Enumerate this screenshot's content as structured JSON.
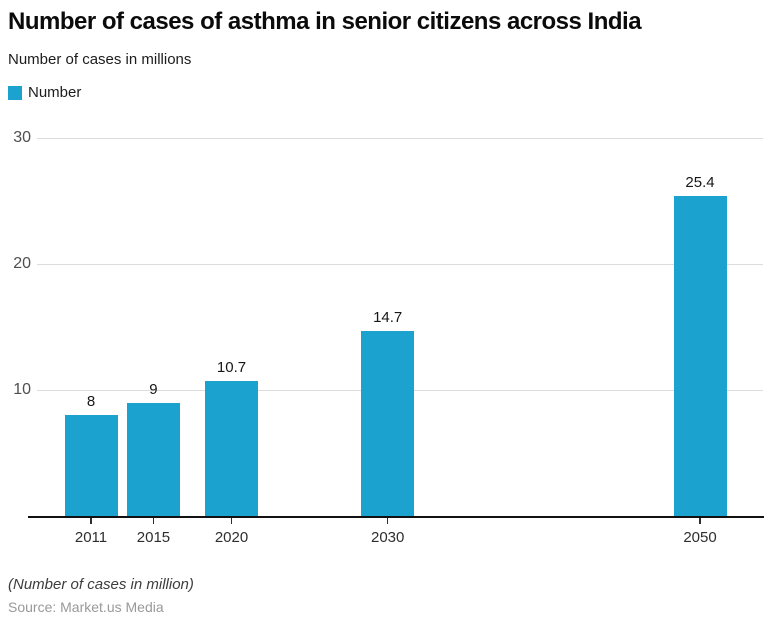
{
  "header": {
    "title": "Number of cases of asthma in senior citizens across India",
    "subtitle": "Number of cases in millions"
  },
  "legend": {
    "label": "Number",
    "color": "#1ca2ce"
  },
  "chart_data": {
    "type": "bar",
    "title": "Number of cases of asthma in senior citizens across India",
    "subtitle": "Number of cases in millions",
    "categories": [
      "2011",
      "2015",
      "2020",
      "2030",
      "2050"
    ],
    "x_numeric": [
      2011,
      2015,
      2020,
      2030,
      2050
    ],
    "values": [
      8,
      9,
      10.7,
      14.7,
      25.4
    ],
    "value_labels": [
      "8",
      "9",
      "10.7",
      "14.7",
      "25.4"
    ],
    "series": [
      {
        "name": "Number",
        "values": [
          8,
          9,
          10.7,
          14.7,
          25.4
        ]
      }
    ],
    "xlabel": "",
    "ylabel": "Number of cases in millions",
    "ylim": [
      0,
      30
    ],
    "yticks": [
      10,
      20,
      30
    ],
    "x_scale": "linear-year",
    "grid": "horizontal-only",
    "legend_position": "top-left",
    "bar_color": "#1ca2ce"
  },
  "footer": {
    "note": "(Number of cases in million)",
    "source": "Source: Market.us Media"
  },
  "colors": {
    "bar": "#1ca2ce",
    "gridline": "#dcdcdc",
    "axis_line": "#111111",
    "y_label": "#4f4f4f",
    "x_label": "#2e2e2e",
    "tick_mark": "#2e2e2e",
    "value_label": "#161616",
    "source_text": "#999999"
  }
}
